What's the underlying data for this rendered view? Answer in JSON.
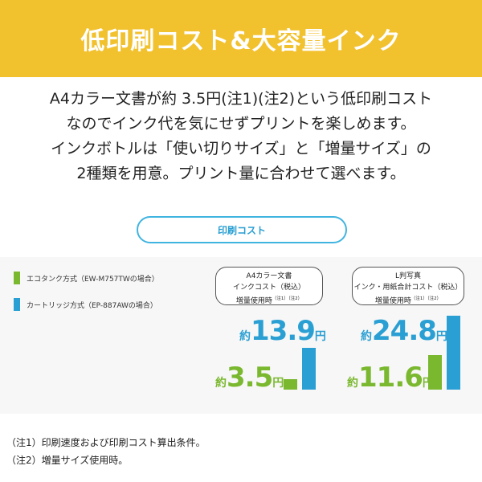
{
  "banner": {
    "title": "低印刷コスト&大容量インク"
  },
  "intro": {
    "lines": [
      "A4カラー文書が約 3.5円(注1)(注2)という低印刷コスト",
      "なのでインク代を気にせずプリントを楽しめます。",
      "インクボトルは「使い切りサイズ」と「増量サイズ」の",
      "2種類を用意。プリント量に合わせて選べます。"
    ]
  },
  "section_pill": {
    "label": "印刷コスト"
  },
  "legend": [
    {
      "label": "エコタンク方式（EW-M757TWの場合）",
      "color": "#7ab82f"
    },
    {
      "label": "カートリッジ方式（EP-887AWの場合）",
      "color": "#2a9fd3"
    }
  ],
  "comparisons": [
    {
      "title_lines": [
        "A4カラー文書",
        "インクコスト（税込）",
        "増量使用時"
      ],
      "notes": "（注1）（注2）",
      "cartridge": {
        "prefix": "約",
        "value": "13.9",
        "unit": "円"
      },
      "ecotank": {
        "prefix": "約",
        "value": "3.5",
        "unit": "円"
      }
    },
    {
      "title_lines": [
        "L判写真",
        "インク・用紙合計コスト（税込）",
        "増量使用時"
      ],
      "notes": "（注1）（注2）",
      "cartridge": {
        "prefix": "約",
        "value": "24.8",
        "unit": "円"
      },
      "ecotank": {
        "prefix": "約",
        "value": "11.6",
        "unit": "円"
      }
    }
  ],
  "footnotes": [
    "（注1）印刷速度および印刷コスト算出条件。",
    "（注2）増量サイズ使用時。"
  ]
}
